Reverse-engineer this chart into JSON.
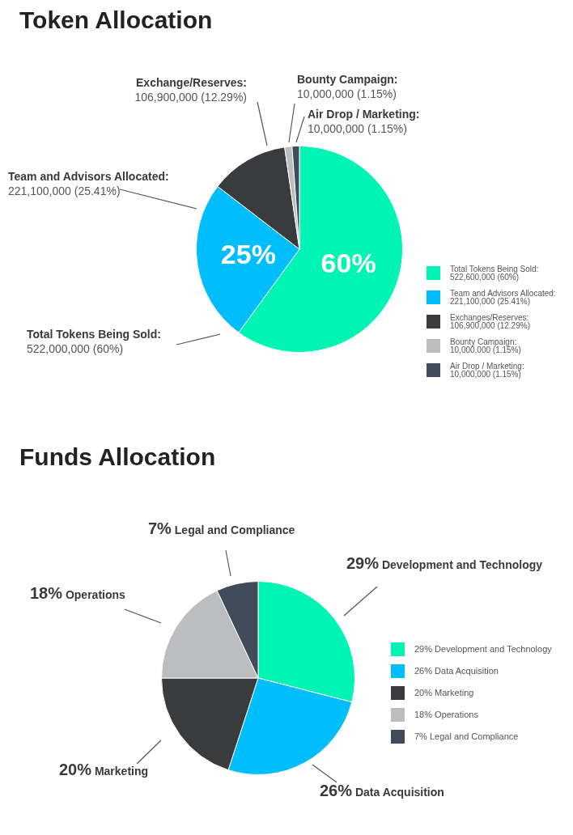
{
  "chart_data": [
    {
      "type": "pie",
      "title": "Token Allocation",
      "categories": [
        "Total Tokens Being Sold:\n522,600,000 (60%)",
        "Team and Advisors Allocated:\n221,100,000 (25.41%)",
        "Exchanges/Reserves:\n106,900,000 (12.29%)",
        "Bounty Campaign:\n10,000,000 (1.15%)",
        "Air Drop / Marketing:\n10,000,000 (1.15%)"
      ],
      "values": [
        522600000,
        221100000,
        106900000,
        10000000,
        10000000
      ],
      "colors": [
        "#00f5b4",
        "#00bdfc",
        "#3a3b3d",
        "#bcbdbf",
        "#414c5b"
      ],
      "annotations": [
        "Total Tokens Being Sold:\n522,000,000 (60%)",
        "Team and Advisors Allocated:\n221,100,000 (25.41%)",
        "Exchange/Reserves:\n106,900,000 (12.29%)",
        "Bounty Campaign:\n10,000,000 (1.15%)",
        "Air Drop / Marketing:\n10,000,000 (1.15%)",
        "60%",
        "25%"
      ],
      "legend": "right"
    },
    {
      "type": "pie",
      "title": "Funds Allocation",
      "categories": [
        "29% Development and Technology",
        "26% Data Acquisition",
        "20% Marketing",
        "18% Operations",
        "7% Legal and Compliance"
      ],
      "values": [
        29,
        26,
        20,
        18,
        7
      ],
      "colors": [
        "#00f5b4",
        "#00bdfc",
        "#3a3b3d",
        "#bcbdbf",
        "#414c5b"
      ],
      "annotations": [
        "29% Development and Technology",
        "26% Data Acquisition",
        "20% Marketing",
        "18% Operations",
        "7% Legal and Compliance"
      ],
      "legend": "right"
    }
  ]
}
